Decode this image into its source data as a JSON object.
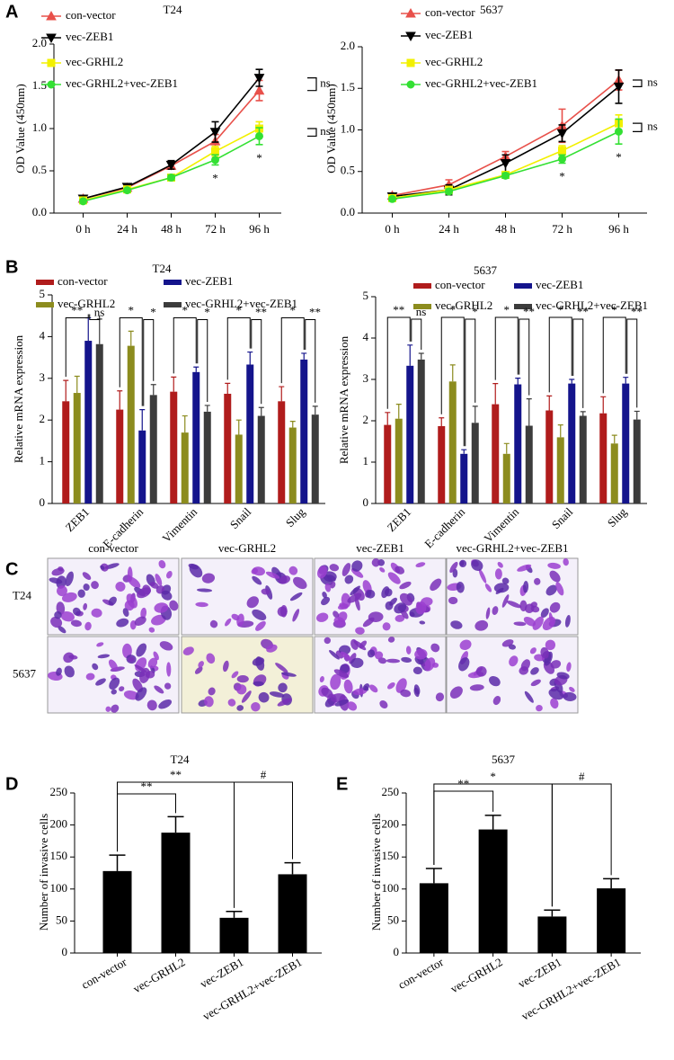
{
  "panels": [
    "A",
    "B",
    "C",
    "D",
    "E"
  ],
  "micrographs": {
    "columns": [
      "con-vector",
      "vec-GRHL2",
      "vec-ZEB1",
      "vec-GRHL2+vec-ZEB1"
    ],
    "rows": [
      "T24",
      "5637"
    ]
  },
  "chart_data": [
    {
      "type": "line",
      "title": "T24",
      "y_label": "OD Value (450nm)",
      "categories": [
        "0 h",
        "24 h",
        "48 h",
        "72 h",
        "96 h"
      ],
      "ylim": [
        0,
        2
      ],
      "yticks": [
        {
          "value": 0,
          "label": "0.0"
        },
        0.5,
        {
          "value": 1,
          "label": "1.0"
        },
        1.5,
        {
          "value": 2,
          "label": "2.0"
        }
      ],
      "series": [
        {
          "name": "con-vector",
          "color": "#e8504a",
          "marker": "triangle-up",
          "values": [
            0.17,
            0.3,
            0.56,
            0.85,
            1.45
          ],
          "errors": [
            0.03,
            0.03,
            0.04,
            0.08,
            0.12
          ]
        },
        {
          "name": "vec-ZEB1",
          "color": "#000000",
          "marker": "triangle-down",
          "values": [
            0.17,
            0.31,
            0.57,
            0.96,
            1.6
          ],
          "errors": [
            0.03,
            0.03,
            0.05,
            0.12,
            0.1
          ]
        },
        {
          "name": "vec-GRHL2",
          "color": "#f2f000",
          "marker": "square",
          "values": [
            0.15,
            0.28,
            0.42,
            0.73,
            1.0
          ],
          "errors": [
            0.02,
            0.02,
            0.03,
            0.06,
            0.08
          ]
        },
        {
          "name": "vec-GRHL2+vec-ZEB1",
          "color": "#33e033",
          "marker": "circle",
          "values": [
            0.14,
            0.27,
            0.42,
            0.63,
            0.91
          ],
          "errors": [
            0.02,
            0.02,
            0.03,
            0.06,
            0.1
          ]
        }
      ],
      "annotations": [
        "ns",
        "ns",
        "*",
        "*"
      ]
    },
    {
      "type": "line",
      "title": "5637",
      "y_label": "OD Value (450nm)",
      "categories": [
        "0 h",
        "24 h",
        "48 h",
        "72 h",
        "96 h"
      ],
      "ylim": [
        0,
        2
      ],
      "yticks": [
        {
          "value": 0,
          "label": "0.0"
        },
        0.5,
        {
          "value": 1,
          "label": "1.0"
        },
        1.5,
        {
          "value": 2,
          "label": "2.0"
        }
      ],
      "series": [
        {
          "name": "con-vector",
          "color": "#e8504a",
          "marker": "triangle-up",
          "values": [
            0.21,
            0.34,
            0.68,
            1.05,
            1.6
          ],
          "errors": [
            0.02,
            0.06,
            0.06,
            0.2,
            0.12
          ]
        },
        {
          "name": "vec-ZEB1",
          "color": "#000000",
          "marker": "triangle-down",
          "values": [
            0.2,
            0.28,
            0.6,
            0.96,
            1.52
          ],
          "errors": [
            0.02,
            0.06,
            0.1,
            0.1,
            0.2
          ]
        },
        {
          "name": "vec-GRHL2",
          "color": "#f2f000",
          "marker": "square",
          "values": [
            0.18,
            0.28,
            0.46,
            0.75,
            1.08
          ],
          "errors": [
            0.02,
            0.03,
            0.03,
            0.06,
            0.1
          ]
        },
        {
          "name": "vec-GRHL2+vec-ZEB1",
          "color": "#33e033",
          "marker": "circle",
          "values": [
            0.17,
            0.26,
            0.45,
            0.65,
            0.98
          ],
          "errors": [
            0.02,
            0.03,
            0.03,
            0.05,
            0.15
          ]
        }
      ],
      "annotations": [
        "ns",
        "ns",
        "*",
        "*"
      ]
    },
    {
      "type": "grouped-bar",
      "title": "T24",
      "y_label": "Relative mRNA expression",
      "categories": [
        "ZEB1",
        "E-cadherin",
        "Vimentin",
        "Snail",
        "Slug"
      ],
      "ylim": [
        0,
        5
      ],
      "yticks": [
        0,
        1,
        2,
        3,
        4,
        5
      ],
      "series": [
        {
          "name": "con-vector",
          "color": "#b01c1c",
          "values": [
            2.45,
            2.25,
            2.68,
            2.63,
            2.45
          ],
          "errors": [
            0.5,
            0.45,
            0.35,
            0.25,
            0.35
          ]
        },
        {
          "name": "vec-GRHL2",
          "color": "#8c8c1e",
          "values": [
            2.65,
            3.78,
            1.7,
            1.65,
            1.82
          ],
          "errors": [
            0.4,
            0.35,
            0.4,
            0.35,
            0.15
          ]
        },
        {
          "name": "vec-ZEB1",
          "color": "#14148c",
          "values": [
            3.9,
            1.75,
            3.15,
            3.33,
            3.45
          ],
          "errors": [
            0.55,
            0.5,
            0.12,
            0.3,
            0.15
          ]
        },
        {
          "name": "vec-GRHL2+vec-ZEB1",
          "color": "#3c3c3c",
          "values": [
            3.82,
            2.6,
            2.2,
            2.1,
            2.13
          ],
          "errors": [
            0.6,
            0.25,
            0.15,
            0.2,
            0.2
          ]
        }
      ],
      "annotations": [
        "**",
        "ns",
        "*",
        "*",
        "*",
        "*",
        "*",
        "**",
        "*",
        "**"
      ]
    },
    {
      "type": "grouped-bar",
      "title": "5637",
      "y_label": "Relative mRNA expression",
      "categories": [
        "ZEB1",
        "E-cadherin",
        "Vimentin",
        "Snail",
        "Slug"
      ],
      "ylim": [
        0,
        5
      ],
      "yticks": [
        0,
        1,
        2,
        3,
        4,
        5
      ],
      "series": [
        {
          "name": "con-vector",
          "color": "#b01c1c",
          "values": [
            1.9,
            1.87,
            2.4,
            2.25,
            2.18
          ],
          "errors": [
            0.3,
            0.2,
            0.5,
            0.35,
            0.4
          ]
        },
        {
          "name": "vec-GRHL2",
          "color": "#8c8c1e",
          "values": [
            2.05,
            2.95,
            1.2,
            1.6,
            1.45
          ],
          "errors": [
            0.35,
            0.4,
            0.25,
            0.3,
            0.2
          ]
        },
        {
          "name": "vec-ZEB1",
          "color": "#14148c",
          "values": [
            3.33,
            1.2,
            2.88,
            2.9,
            2.9
          ],
          "errors": [
            0.5,
            0.1,
            0.15,
            0.1,
            0.15
          ]
        },
        {
          "name": "vec-GRHL2+vec-ZEB1",
          "color": "#3c3c3c",
          "values": [
            3.48,
            1.95,
            1.88,
            2.12,
            2.03
          ],
          "errors": [
            0.15,
            0.4,
            0.65,
            0.1,
            0.2
          ]
        }
      ],
      "annotations": [
        "**",
        "ns",
        "*",
        "*",
        "*",
        "**",
        "*",
        "**",
        "*",
        "**"
      ]
    },
    {
      "type": "bar",
      "title": "T24",
      "y_label": "Number of invasive cells",
      "categories": [
        "con-vector",
        "vec-GRHL2",
        "vec-ZEB1",
        "vec-GRHL2+vec-ZEB1"
      ],
      "ylim": [
        0,
        250
      ],
      "yticks": [
        0,
        50,
        100,
        150,
        200,
        250
      ],
      "color": "#000000",
      "values": [
        128,
        188,
        55,
        123
      ],
      "errors": [
        25,
        25,
        10,
        18
      ],
      "annotations": [
        "**",
        "**",
        "#"
      ]
    },
    {
      "type": "bar",
      "title": "5637",
      "y_label": "Number of invasive cells",
      "categories": [
        "con-vector",
        "vec-GRHL2",
        "vec-ZEB1",
        "vec-GRHL2+vec-ZEB1"
      ],
      "ylim": [
        0,
        250
      ],
      "yticks": [
        0,
        50,
        100,
        150,
        200,
        250
      ],
      "color": "#000000",
      "values": [
        109,
        193,
        57,
        101
      ],
      "errors": [
        23,
        22,
        10,
        15
      ],
      "annotations": [
        "**",
        "*",
        "#"
      ]
    }
  ]
}
